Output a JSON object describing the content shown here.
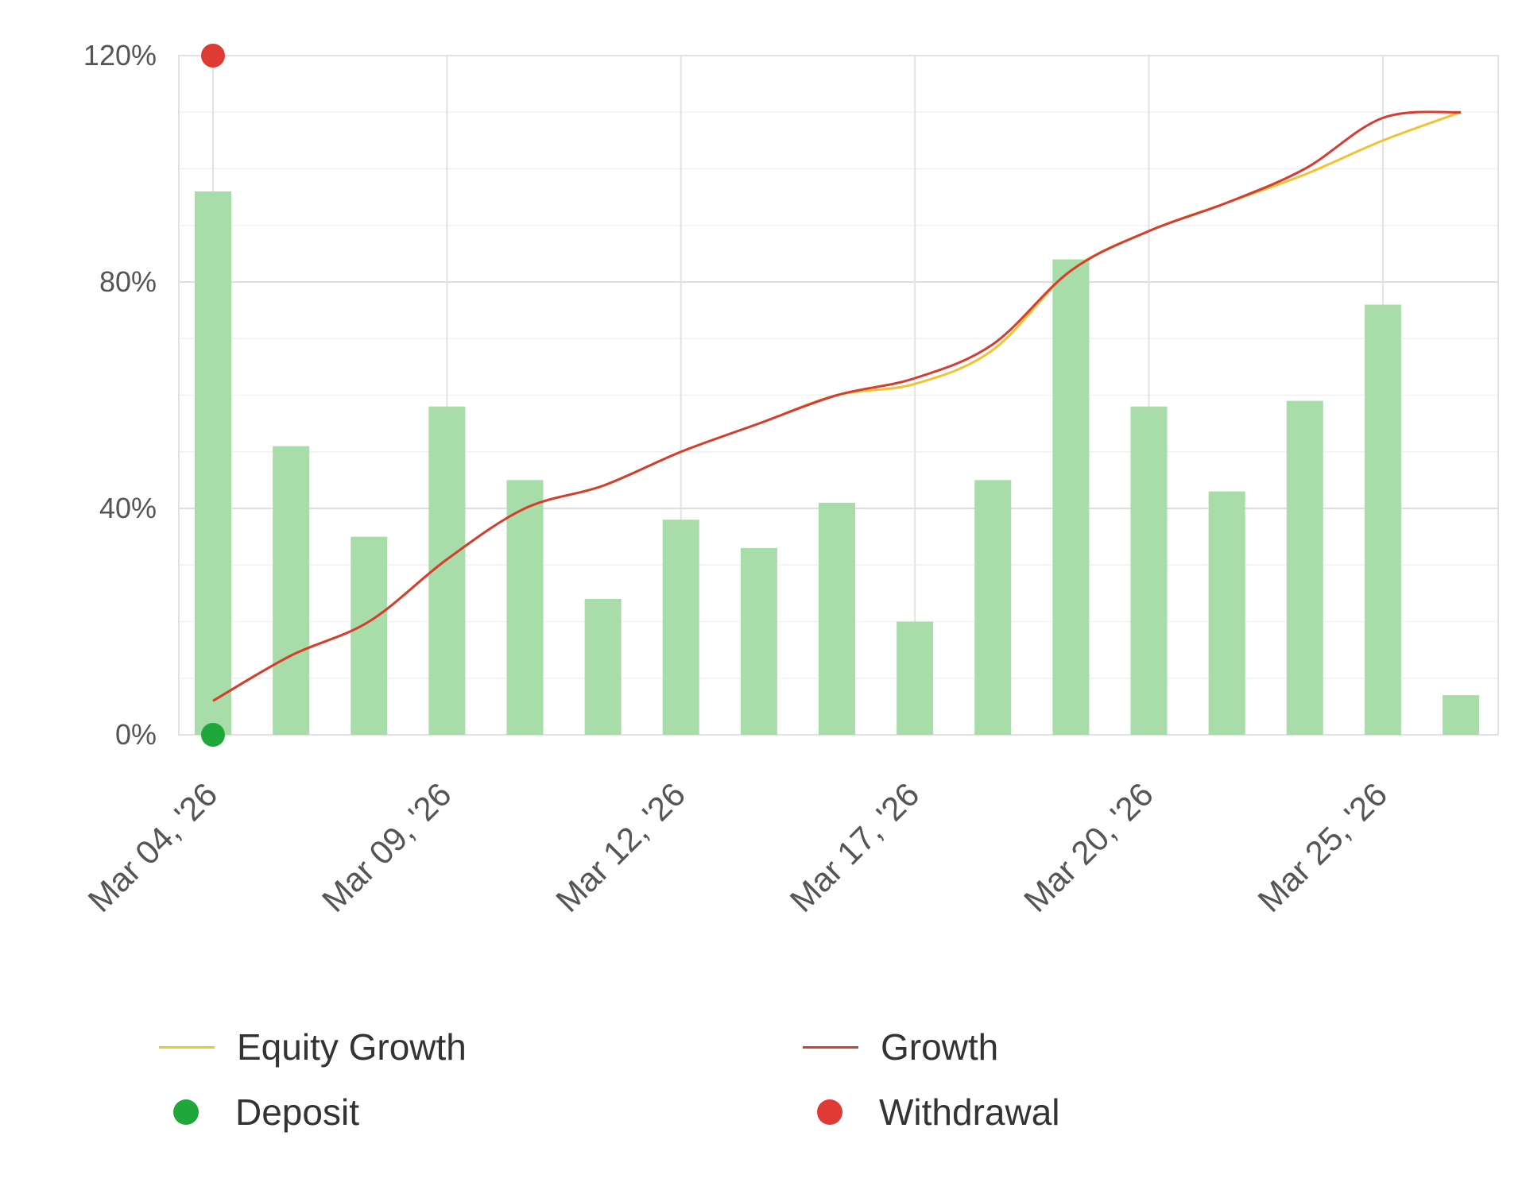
{
  "chart_data": {
    "type": "bar",
    "x_axis": {
      "type": "date",
      "tick_labels": [
        "Mar 04, '26",
        "Mar 09, '26",
        "Mar 12, '26",
        "Mar 17, '26",
        "Mar 20, '26",
        "Mar 25, '26"
      ]
    },
    "y_axis": {
      "tick_labels": [
        "0%",
        "40%",
        "80%",
        "120%"
      ],
      "ylim": [
        0,
        120
      ],
      "unit": "%"
    },
    "grid": true,
    "legend_position": "bottom",
    "bars": {
      "name": "",
      "color": "#a8dca8",
      "values": [
        96,
        51,
        35,
        58,
        45,
        24,
        38,
        33,
        41,
        20,
        45,
        84,
        58,
        43,
        59,
        76,
        7
      ]
    },
    "series": [
      {
        "name": "Equity Growth",
        "type": "line",
        "color": "#f2c230",
        "values": [
          6,
          14,
          20,
          31,
          40,
          44,
          50,
          55,
          60,
          62,
          68,
          82,
          89,
          94,
          99,
          105,
          110
        ]
      },
      {
        "name": "Growth",
        "type": "line",
        "color": "#d43d2f",
        "values": [
          6,
          14,
          20,
          31,
          40,
          44,
          50,
          55,
          60,
          63,
          69,
          82,
          89,
          94,
          100,
          109,
          110
        ]
      }
    ],
    "events": [
      {
        "name": "Deposit",
        "color": "#1fa83a",
        "index": 0,
        "value": 0
      },
      {
        "name": "Withdrawal",
        "color": "#e03a35",
        "index": 0,
        "value": 120
      }
    ]
  },
  "legend": [
    {
      "label": "Equity Growth",
      "kind": "line",
      "color": "#f2c230"
    },
    {
      "label": "Growth",
      "kind": "line",
      "color": "#d43d2f"
    },
    {
      "label": "Deposit",
      "kind": "dot",
      "color": "#1fa83a"
    },
    {
      "label": "Withdrawal",
      "kind": "dot",
      "color": "#e03a35"
    }
  ]
}
